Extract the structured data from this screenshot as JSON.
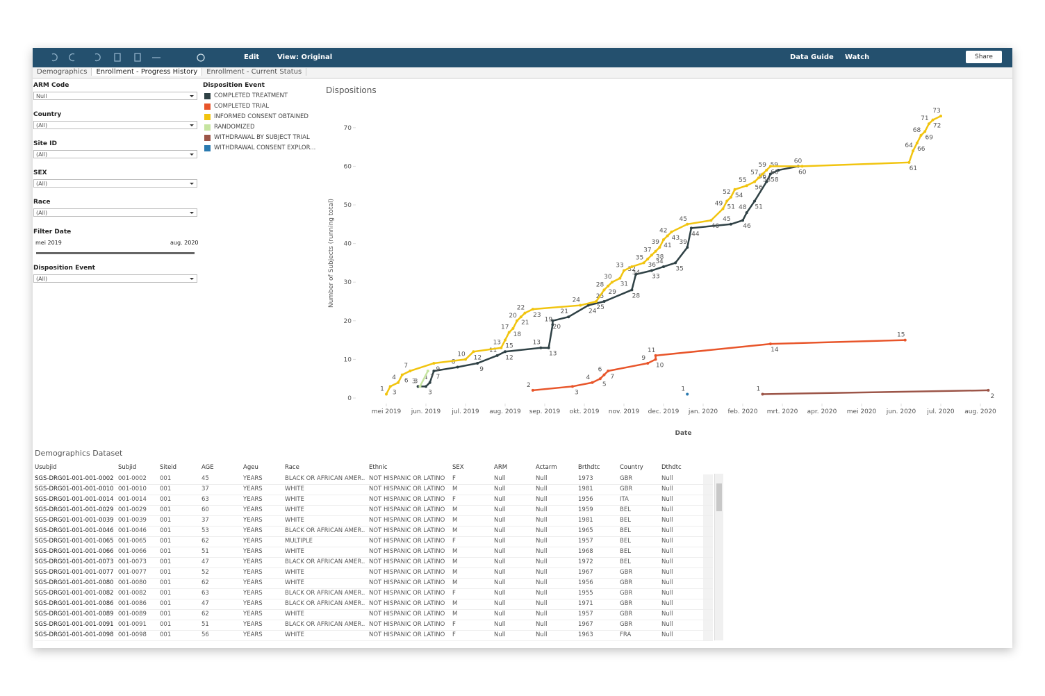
{
  "toolbar": {
    "edit": "Edit",
    "view": "View: Original",
    "data_guide": "Data Guide",
    "watch": "Watch",
    "share": "Share"
  },
  "tabs": [
    "Demographics",
    "Enrollment - Progress History",
    "Enrollment - Current Status"
  ],
  "filters": [
    {
      "label": "ARM Code",
      "value": "Null"
    },
    {
      "label": "Country",
      "value": "(All)"
    },
    {
      "label": "Site ID",
      "value": "(All)"
    },
    {
      "label": "SEX",
      "value": "(All)"
    },
    {
      "label": "Race",
      "value": "(All)"
    }
  ],
  "date_filter": {
    "label": "Filter Date",
    "start": "mei 2019",
    "end": "aug. 2020"
  },
  "event_filter": {
    "label": "Disposition Event",
    "value": "(All)"
  },
  "legend_title": "Disposition Event",
  "chart_data": {
    "type": "line",
    "title": "Dispositions",
    "x_label": "Date",
    "y_label": "Number of Subjects (running total)",
    "xlim": [
      -0.5,
      15.5
    ],
    "xticks": [
      {
        "value": 0,
        "label": "mei 2019"
      },
      {
        "value": 1,
        "label": "jun. 2019"
      },
      {
        "value": 2,
        "label": "jul. 2019"
      },
      {
        "value": 3,
        "label": "aug. 2019"
      },
      {
        "value": 4,
        "label": "sep. 2019"
      },
      {
        "value": 5,
        "label": "okt. 2019"
      },
      {
        "value": 6,
        "label": "nov. 2019"
      },
      {
        "value": 7,
        "label": "dec. 2019"
      },
      {
        "value": 8,
        "label": "jan. 2020"
      },
      {
        "value": 9,
        "label": "feb. 2020"
      },
      {
        "value": 10,
        "label": "mrt. 2020"
      },
      {
        "value": 11,
        "label": "apr. 2020"
      },
      {
        "value": 12,
        "label": "mei 2020"
      },
      {
        "value": 13,
        "label": "jun. 2020"
      },
      {
        "value": 14,
        "label": "jul. 2020"
      },
      {
        "value": 15,
        "label": "aug. 2020"
      }
    ],
    "ylim": [
      0,
      75
    ],
    "yticks": [
      0,
      10,
      20,
      30,
      40,
      50,
      60,
      70
    ],
    "series": [
      {
        "name": "COMPLETED TREATMENT",
        "color": "#2f4145",
        "x": [
          0.8,
          1.0,
          1.1,
          1.2,
          1.8,
          2.3,
          2.8,
          3.0,
          3.9,
          4.1,
          4.2,
          4.2,
          4.6,
          5.1,
          5.5,
          6.2,
          6.3,
          6.7,
          7.0,
          7.3,
          7.6,
          7.7,
          8.7,
          9.0,
          9.1,
          9.3,
          9.6,
          9.7,
          9.9,
          10.4
        ],
        "values": [
          3,
          3,
          4,
          7,
          8,
          9,
          11,
          12,
          13,
          13,
          19,
          20,
          21,
          24,
          25,
          28,
          32,
          33,
          34,
          35,
          39,
          44,
          45,
          46,
          48,
          51,
          56,
          58,
          59,
          60
        ]
      },
      {
        "name": "COMPLETED TRIAL",
        "color": "#e8552a",
        "x": [
          3.7,
          4.7,
          5.2,
          5.4,
          5.5,
          5.6,
          6.6,
          6.8,
          6.8,
          9.7,
          13.1
        ],
        "values": [
          2,
          3,
          4,
          5,
          6,
          7,
          9,
          10,
          11,
          14,
          15
        ]
      },
      {
        "name": "INFORMED CONSENT OBTAINED",
        "color": "#f1c40f",
        "x": [
          0.0,
          0.1,
          0.3,
          0.4,
          0.6,
          1.2,
          2.0,
          2.2,
          2.9,
          3.0,
          3.1,
          3.2,
          3.3,
          3.4,
          3.5,
          3.7,
          4.9,
          5.3,
          5.5,
          5.6,
          5.7,
          5.9,
          6.0,
          6.2,
          6.5,
          6.6,
          6.7,
          6.8,
          6.9,
          7.0,
          7.1,
          7.2,
          7.6,
          8.2,
          8.5,
          8.6,
          8.7,
          8.8,
          9.1,
          9.3,
          9.4,
          9.5,
          9.6,
          9.7,
          10.5,
          13.2,
          13.3,
          13.4,
          13.5,
          13.6,
          13.7,
          13.8,
          14.0
        ],
        "values": [
          1,
          3,
          4,
          6,
          7,
          9,
          10,
          12,
          13,
          15,
          17,
          18,
          20,
          21,
          22,
          23,
          24,
          25,
          28,
          29,
          30,
          31,
          33,
          34,
          35,
          36,
          37,
          38,
          39,
          41,
          42,
          43,
          45,
          46,
          49,
          51,
          52,
          54,
          55,
          56,
          57,
          58,
          59,
          60,
          60,
          61,
          64,
          66,
          68,
          69,
          71,
          72,
          73
        ]
      },
      {
        "name": "RANDOMIZED",
        "color": "#c6e4a0",
        "x": [
          0.85,
          1.05
        ],
        "values": [
          3,
          7
        ]
      },
      {
        "name": "WITHDRAWAL BY SUBJECT TRIAL",
        "color": "#9c5548",
        "x": [
          9.5,
          15.2
        ],
        "values": [
          1,
          2
        ]
      },
      {
        "name": "WITHDRAWAL CONSENT EXPLOR...",
        "color": "#2a7ab0",
        "x": [
          7.6
        ],
        "values": [
          1
        ]
      }
    ]
  },
  "table": {
    "title": "Demographics Dataset",
    "columns": [
      "Usubjid",
      "Subjid",
      "Siteid",
      "AGE",
      "Ageu",
      "Race",
      "Ethnic",
      "SEX",
      "ARM",
      "Actarm",
      "Brthdtc",
      "Country",
      "Dthdtc"
    ],
    "rows": [
      [
        "SGS-DRG01-001-001-0002",
        "001-0002",
        "001",
        "45",
        "YEARS",
        "BLACK OR AFRICAN AMER..",
        "NOT HISPANIC OR LATINO",
        "F",
        "Null",
        "Null",
        "1973",
        "GBR",
        "Null"
      ],
      [
        "SGS-DRG01-001-001-0010",
        "001-0010",
        "001",
        "37",
        "YEARS",
        "WHITE",
        "NOT HISPANIC OR LATINO",
        "M",
        "Null",
        "Null",
        "1981",
        "GBR",
        "Null"
      ],
      [
        "SGS-DRG01-001-001-0014",
        "001-0014",
        "001",
        "63",
        "YEARS",
        "WHITE",
        "NOT HISPANIC OR LATINO",
        "F",
        "Null",
        "Null",
        "1956",
        "ITA",
        "Null"
      ],
      [
        "SGS-DRG01-001-001-0029",
        "001-0029",
        "001",
        "60",
        "YEARS",
        "WHITE",
        "NOT HISPANIC OR LATINO",
        "M",
        "Null",
        "Null",
        "1959",
        "BEL",
        "Null"
      ],
      [
        "SGS-DRG01-001-001-0039",
        "001-0039",
        "001",
        "37",
        "YEARS",
        "WHITE",
        "NOT HISPANIC OR LATINO",
        "M",
        "Null",
        "Null",
        "1981",
        "BEL",
        "Null"
      ],
      [
        "SGS-DRG01-001-001-0046",
        "001-0046",
        "001",
        "53",
        "YEARS",
        "BLACK OR AFRICAN AMER..",
        "NOT HISPANIC OR LATINO",
        "M",
        "Null",
        "Null",
        "1965",
        "BEL",
        "Null"
      ],
      [
        "SGS-DRG01-001-001-0065",
        "001-0065",
        "001",
        "62",
        "YEARS",
        "MULTIPLE",
        "NOT HISPANIC OR LATINO",
        "F",
        "Null",
        "Null",
        "1957",
        "BEL",
        "Null"
      ],
      [
        "SGS-DRG01-001-001-0066",
        "001-0066",
        "001",
        "51",
        "YEARS",
        "WHITE",
        "NOT HISPANIC OR LATINO",
        "M",
        "Null",
        "Null",
        "1968",
        "BEL",
        "Null"
      ],
      [
        "SGS-DRG01-001-001-0073",
        "001-0073",
        "001",
        "47",
        "YEARS",
        "BLACK OR AFRICAN AMER..",
        "NOT HISPANIC OR LATINO",
        "M",
        "Null",
        "Null",
        "1972",
        "BEL",
        "Null"
      ],
      [
        "SGS-DRG01-001-001-0077",
        "001-0077",
        "001",
        "52",
        "YEARS",
        "WHITE",
        "NOT HISPANIC OR LATINO",
        "M",
        "Null",
        "Null",
        "1967",
        "GBR",
        "Null"
      ],
      [
        "SGS-DRG01-001-001-0080",
        "001-0080",
        "001",
        "62",
        "YEARS",
        "WHITE",
        "NOT HISPANIC OR LATINO",
        "M",
        "Null",
        "Null",
        "1956",
        "GBR",
        "Null"
      ],
      [
        "SGS-DRG01-001-001-0082",
        "001-0082",
        "001",
        "63",
        "YEARS",
        "BLACK OR AFRICAN AMER..",
        "NOT HISPANIC OR LATINO",
        "F",
        "Null",
        "Null",
        "1955",
        "GBR",
        "Null"
      ],
      [
        "SGS-DRG01-001-001-0086",
        "001-0086",
        "001",
        "47",
        "YEARS",
        "BLACK OR AFRICAN AMER..",
        "NOT HISPANIC OR LATINO",
        "M",
        "Null",
        "Null",
        "1971",
        "GBR",
        "Null"
      ],
      [
        "SGS-DRG01-001-001-0089",
        "001-0089",
        "001",
        "62",
        "YEARS",
        "WHITE",
        "NOT HISPANIC OR LATINO",
        "M",
        "Null",
        "Null",
        "1957",
        "GBR",
        "Null"
      ],
      [
        "SGS-DRG01-001-001-0091",
        "001-0091",
        "001",
        "51",
        "YEARS",
        "BLACK OR AFRICAN AMER..",
        "NOT HISPANIC OR LATINO",
        "F",
        "Null",
        "Null",
        "1967",
        "GBR",
        "Null"
      ],
      [
        "SGS-DRG01-001-001-0098",
        "001-0098",
        "001",
        "56",
        "YEARS",
        "WHITE",
        "NOT HISPANIC OR LATINO",
        "F",
        "Null",
        "Null",
        "1963",
        "FRA",
        "Null"
      ]
    ]
  }
}
